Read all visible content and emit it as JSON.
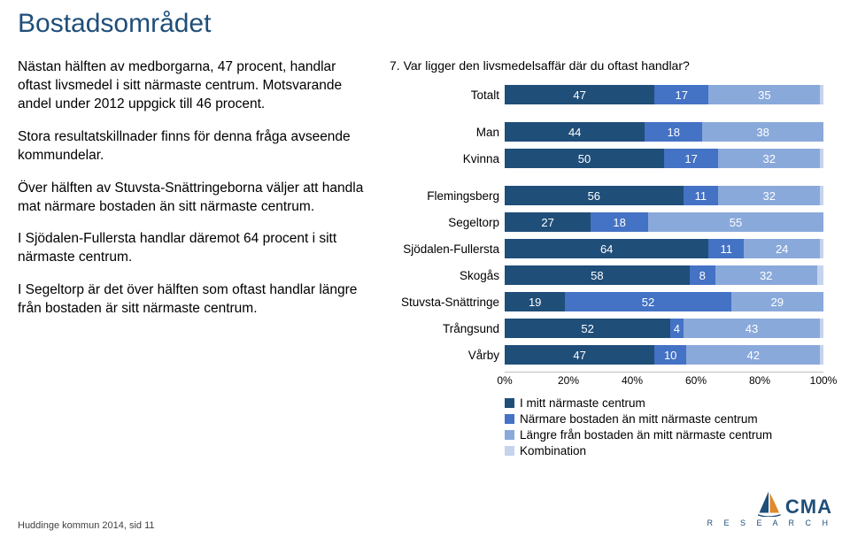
{
  "title": "Bostadsområdet",
  "paragraphs": [
    "Nästan hälften av medborgarna, 47 procent, handlar oftast livsmedel i sitt närmaste centrum. Motsvarande andel under 2012 uppgick till 46 procent.",
    "Stora resultatskillnader finns för denna fråga avseende kommundelar.",
    "Över hälften av Stuvsta-Snättringeborna väljer att handla mat närmare bostaden än sitt närmaste centrum.",
    "I Sjödalen-Fullersta handlar däremot 64 procent i sitt närmaste centrum.",
    "I Segeltorp är det över hälften som oftast handlar längre från bostaden är sitt närmaste centrum."
  ],
  "chart": {
    "title": "7. Var ligger den livsmedelsaffär där du oftast handlar?",
    "colors": [
      "#1f4e79",
      "#4472c4",
      "#8aa9db",
      "#c5d4ed"
    ],
    "value_text_color": "#ffffff",
    "label_fontsize": 13.5,
    "value_fontsize": 13,
    "axis_ticks": [
      "0%",
      "20%",
      "40%",
      "60%",
      "80%",
      "100%"
    ],
    "groups": [
      {
        "rows": [
          {
            "label": "Totalt",
            "values": [
              47,
              17,
              35,
              1
            ]
          }
        ]
      },
      {
        "rows": [
          {
            "label": "Man",
            "values": [
              44,
              18,
              38,
              0
            ]
          },
          {
            "label": "Kvinna",
            "values": [
              50,
              17,
              32,
              1
            ]
          }
        ]
      },
      {
        "rows": [
          {
            "label": "Flemingsberg",
            "values": [
              56,
              11,
              32,
              1
            ]
          },
          {
            "label": "Segeltorp",
            "values": [
              27,
              18,
              55,
              0
            ]
          },
          {
            "label": "Sjödalen-Fullersta",
            "values": [
              64,
              11,
              24,
              1
            ]
          },
          {
            "label": "Skogås",
            "values": [
              58,
              8,
              32,
              2
            ]
          },
          {
            "label": "Stuvsta-Snättringe",
            "values": [
              19,
              52,
              29,
              0
            ]
          },
          {
            "label": "Trångsund",
            "values": [
              52,
              4,
              43,
              1
            ]
          },
          {
            "label": "Vårby",
            "values": [
              47,
              10,
              42,
              1
            ]
          }
        ]
      }
    ],
    "legend": [
      "I mitt närmaste centrum",
      "Närmare bostaden än mitt närmaste centrum",
      "Längre från bostaden än mitt närmaste centrum",
      "Kombination"
    ]
  },
  "footer": "Huddinge kommun 2014, sid 11",
  "logo": {
    "text": "CMA",
    "sub": "R E S E A R C H",
    "accent": "#e08a2c",
    "primary": "#1f4e79"
  }
}
